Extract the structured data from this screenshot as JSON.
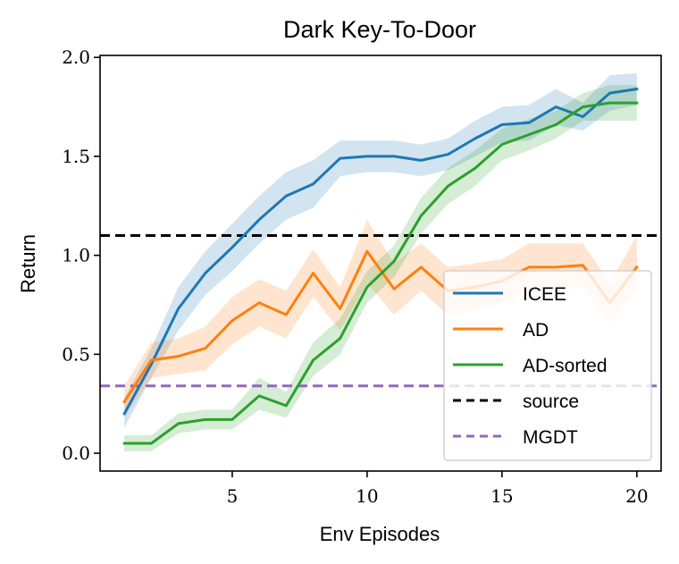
{
  "chart_data": {
    "type": "line",
    "title": "Dark Key-To-Door",
    "xlabel": "Env Episodes",
    "ylabel": "Return",
    "xlim": [
      0.1,
      20.9
    ],
    "ylim": [
      -0.09,
      2.01
    ],
    "xticks": [
      5,
      10,
      15,
      20
    ],
    "xtick_labels": [
      "5",
      "10",
      "15",
      "20"
    ],
    "yticks": [
      0.0,
      0.5,
      1.0,
      1.5,
      2.0
    ],
    "ytick_labels": [
      "0.0",
      "0.5",
      "1.0",
      "1.5",
      "2.0"
    ],
    "grid": false,
    "legend_position": "lower-right",
    "x": [
      1,
      2,
      3,
      4,
      5,
      6,
      7,
      8,
      9,
      10,
      11,
      12,
      13,
      14,
      15,
      16,
      17,
      18,
      19,
      20
    ],
    "series": [
      {
        "name": "ICEE",
        "color": "#1f77b4",
        "values": [
          0.2,
          0.45,
          0.73,
          0.91,
          1.04,
          1.18,
          1.3,
          1.36,
          1.49,
          1.5,
          1.5,
          1.48,
          1.51,
          1.59,
          1.66,
          1.67,
          1.75,
          1.7,
          1.82,
          1.84
        ],
        "lower": [
          0.13,
          0.38,
          0.62,
          0.8,
          0.92,
          1.06,
          1.18,
          1.24,
          1.4,
          1.42,
          1.42,
          1.4,
          1.43,
          1.5,
          1.57,
          1.58,
          1.66,
          1.63,
          1.73,
          1.76
        ],
        "upper": [
          0.28,
          0.53,
          0.84,
          1.02,
          1.16,
          1.3,
          1.42,
          1.48,
          1.58,
          1.58,
          1.58,
          1.56,
          1.59,
          1.68,
          1.75,
          1.76,
          1.84,
          1.77,
          1.91,
          1.92
        ]
      },
      {
        "name": "AD",
        "color": "#ff7f0e",
        "values": [
          0.26,
          0.47,
          0.49,
          0.53,
          0.67,
          0.76,
          0.7,
          0.91,
          0.73,
          1.02,
          0.83,
          0.94,
          0.82,
          0.84,
          0.87,
          0.94,
          0.94,
          0.95,
          0.76,
          0.94
        ],
        "lower": [
          0.18,
          0.38,
          0.4,
          0.42,
          0.55,
          0.64,
          0.58,
          0.79,
          0.62,
          0.86,
          0.7,
          0.82,
          0.7,
          0.72,
          0.76,
          0.82,
          0.82,
          0.84,
          0.66,
          0.82
        ],
        "upper": [
          0.34,
          0.56,
          0.58,
          0.64,
          0.79,
          0.88,
          0.82,
          1.03,
          0.84,
          1.18,
          0.96,
          1.06,
          0.94,
          0.96,
          0.98,
          1.06,
          1.06,
          1.06,
          0.86,
          1.1
        ]
      },
      {
        "name": "AD-sorted",
        "color": "#2ca02c",
        "values": [
          0.05,
          0.05,
          0.15,
          0.17,
          0.17,
          0.29,
          0.24,
          0.47,
          0.58,
          0.84,
          0.97,
          1.2,
          1.35,
          1.44,
          1.56,
          1.61,
          1.66,
          1.75,
          1.77,
          1.77
        ],
        "lower": [
          0.01,
          0.01,
          0.1,
          0.12,
          0.12,
          0.22,
          0.18,
          0.39,
          0.5,
          0.76,
          0.89,
          1.11,
          1.26,
          1.35,
          1.48,
          1.53,
          1.59,
          1.68,
          1.68,
          1.68
        ],
        "upper": [
          0.09,
          0.09,
          0.2,
          0.22,
          0.22,
          0.38,
          0.31,
          0.56,
          0.68,
          0.92,
          1.05,
          1.29,
          1.44,
          1.53,
          1.64,
          1.69,
          1.73,
          1.82,
          1.86,
          1.86
        ]
      }
    ],
    "hlines": [
      {
        "name": "source",
        "value": 1.1,
        "color": "#000000"
      },
      {
        "name": "MGDT",
        "value": 0.34,
        "color": "#9467bd"
      }
    ]
  }
}
